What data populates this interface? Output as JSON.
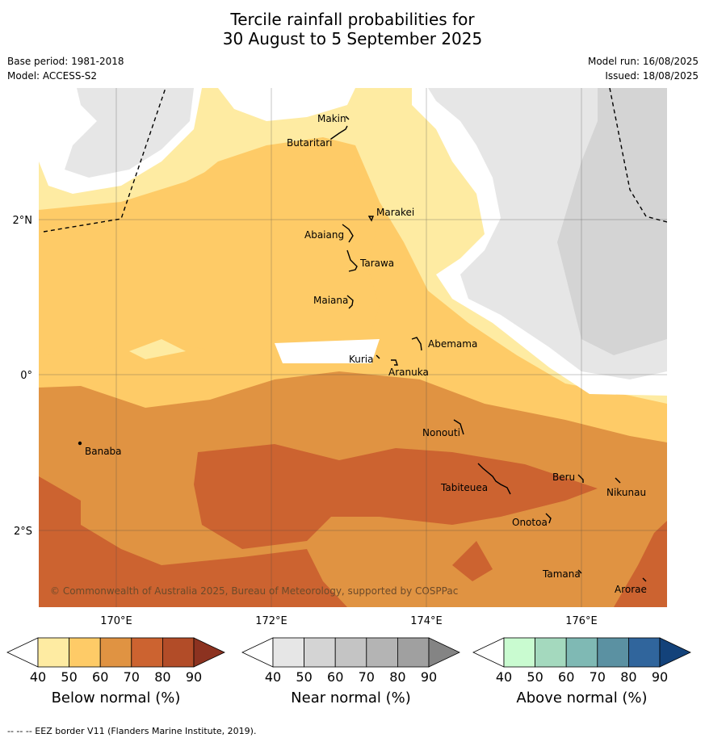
{
  "title": {
    "line1": "Tercile rainfall probabilities for",
    "line2": "30 August to 5 September 2025"
  },
  "meta": {
    "base_period": "Base period: 1981-2018",
    "model": "Model: ACCESS-S2",
    "model_run": "Model run: 16/08/2025",
    "issued": "Issued: 18/08/2025"
  },
  "map": {
    "lon_ticks": [
      "170°E",
      "172°E",
      "174°E",
      "176°E"
    ],
    "lat_ticks": [
      "2°N",
      "0°",
      "2°S"
    ],
    "places": {
      "makin": "Makin",
      "butaritari": "Butaritari",
      "marakei": "Marakei",
      "abaiang": "Abaiang",
      "tarawa": "Tarawa",
      "maiana": "Maiana",
      "abemama": "Abemama",
      "kuria": "Kuria",
      "aranuka": "Aranuka",
      "nonouti": "Nonouti",
      "banaba": "Banaba",
      "tabiteuea": "Tabiteuea",
      "beru": "Beru",
      "nikunau": "Nikunau",
      "onotoa": "Onotoa",
      "tamana": "Tamana",
      "arorae": "Arorae"
    },
    "copyright": "© Commonwealth of Australia 2025, Bureau of Meteorology, supported by COSPPac"
  },
  "colorbars": [
    {
      "label": "Below normal (%)",
      "ticks": [
        "40",
        "50",
        "60",
        "70",
        "80",
        "90"
      ],
      "colors": [
        "#ffffff",
        "#feeba2",
        "#fecb67",
        "#e09342",
        "#cc6330",
        "#b24c28",
        "#8c3220"
      ]
    },
    {
      "label": "Near normal (%)",
      "ticks": [
        "40",
        "50",
        "60",
        "70",
        "80",
        "90"
      ],
      "colors": [
        "#ffffff",
        "#e6e6e6",
        "#d4d4d4",
        "#c4c4c4",
        "#b4b4b4",
        "#a0a0a0",
        "#848484"
      ]
    },
    {
      "label": "Above normal (%)",
      "ticks": [
        "40",
        "50",
        "60",
        "70",
        "80",
        "90"
      ],
      "colors": [
        "#ffffff",
        "#c9fbd0",
        "#a4d9be",
        "#7fb9b4",
        "#5b91a2",
        "#30659c",
        "#13427a"
      ]
    }
  ],
  "footer": "--  --  -- EEZ border V11 (Flanders Marine Institute, 2019)."
}
